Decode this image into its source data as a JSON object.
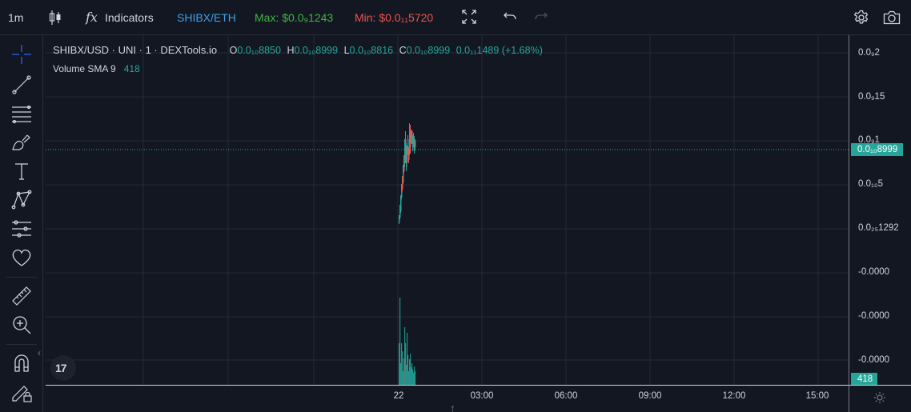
{
  "toolbar": {
    "interval": "1m",
    "indicators_label": "Indicators",
    "fx_label": "fx",
    "pair": "SHIBX/ETH",
    "max_label": "Max: $0.0₉1243",
    "min_label": "Min: $0.0₁₁5720"
  },
  "legend": {
    "symbol": "SHIBX/USD · UNI · 1 · DEXTools.io",
    "open_key": "O",
    "open": "0.0₁₀8850",
    "high_key": "H",
    "high": "0.0₁₀8999",
    "low_key": "L",
    "low": "0.0₁₀8816",
    "close_key": "C",
    "close": "0.0₁₀8999",
    "change": "0.0₁₁1489 (+1.68%)",
    "volume_label": "Volume SMA 9",
    "volume_value": "418"
  },
  "price_axis": {
    "ticks": [
      "0.0₉2",
      "0.0₉15",
      "0.0₉1",
      "0.0₁₀5",
      "0.0₂₅1292",
      "-0.0000",
      "-0.0000",
      "-0.0000"
    ],
    "last_price": "0.0₁₀8999",
    "volume_value": "418"
  },
  "time_axis": {
    "ticks": [
      "22",
      "03:00",
      "06:00",
      "09:00",
      "12:00",
      "15:00"
    ]
  },
  "colors": {
    "up": "#26a69a",
    "down": "#ef5350",
    "background": "#131722",
    "grid": "#252a36",
    "max_text": "#3fb63f",
    "min_text": "#ef5350",
    "pair_text": "#3fa0e8"
  },
  "icons": {
    "left_toolbar": [
      "crosshair-icon",
      "trend-line-icon",
      "fib-retracement-icon",
      "brush-icon",
      "text-icon",
      "pattern-icon",
      "prediction-icon",
      "favorite-heart-icon",
      "ruler-icon",
      "zoom-in-icon",
      "magnet-icon",
      "lock-drawing-icon"
    ]
  }
}
